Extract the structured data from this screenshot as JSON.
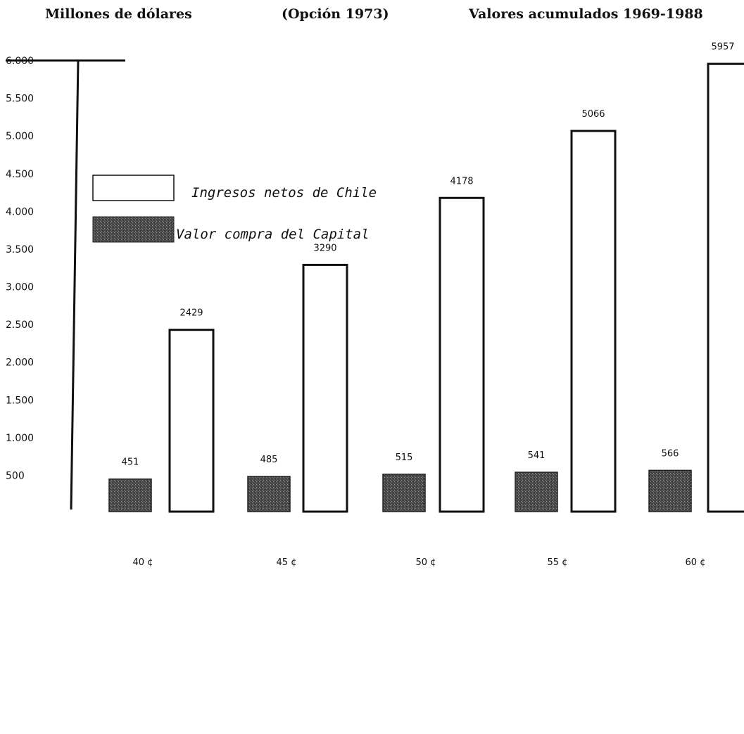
{
  "header": {
    "left": "Millones de dólares",
    "center": "(Opción 1973)",
    "right": "Valores acumulados 1969-1988"
  },
  "chart_data": {
    "type": "bar",
    "categories": [
      "40 ¢",
      "45 ¢",
      "50 ¢",
      "55 ¢",
      "60 ¢"
    ],
    "series": [
      {
        "name": "Valor compra del Capital",
        "values": [
          451,
          485,
          515,
          541,
          566
        ],
        "value_labels": [
          "451",
          "485",
          "515",
          "541",
          "566"
        ],
        "fill": "hatched-dark"
      },
      {
        "name": "Ingresos netos de Chile",
        "values": [
          2429,
          3290,
          4178,
          5066,
          5957
        ],
        "value_labels": [
          "2429",
          "3290",
          "4178",
          "5066",
          "5957"
        ],
        "fill": "white"
      }
    ],
    "ylim": [
      0,
      6000
    ],
    "yticks": [
      {
        "value": 6000,
        "label": "6.000"
      },
      {
        "value": 5500,
        "label": "5.500"
      },
      {
        "value": 5000,
        "label": "5.000"
      },
      {
        "value": 4500,
        "label": "4.500"
      },
      {
        "value": 4000,
        "label": "4.000"
      },
      {
        "value": 3500,
        "label": "3.500"
      },
      {
        "value": 3000,
        "label": "3.000"
      },
      {
        "value": 2500,
        "label": "2.500"
      },
      {
        "value": 2000,
        "label": "2.000"
      },
      {
        "value": 1500,
        "label": "1.500"
      },
      {
        "value": 1000,
        "label": "1.000"
      },
      {
        "value": 500,
        "label": "500"
      }
    ],
    "grid": false,
    "legend_position": "top-left",
    "legend": [
      {
        "label": "Ingresos netos de Chile",
        "fill": "white"
      },
      {
        "label": "Valor compra del Capital",
        "fill": "hatched-dark"
      }
    ],
    "colors": {
      "ink": "#111111",
      "hatch": "#5a5a5a",
      "paper": "#ffffff"
    }
  }
}
